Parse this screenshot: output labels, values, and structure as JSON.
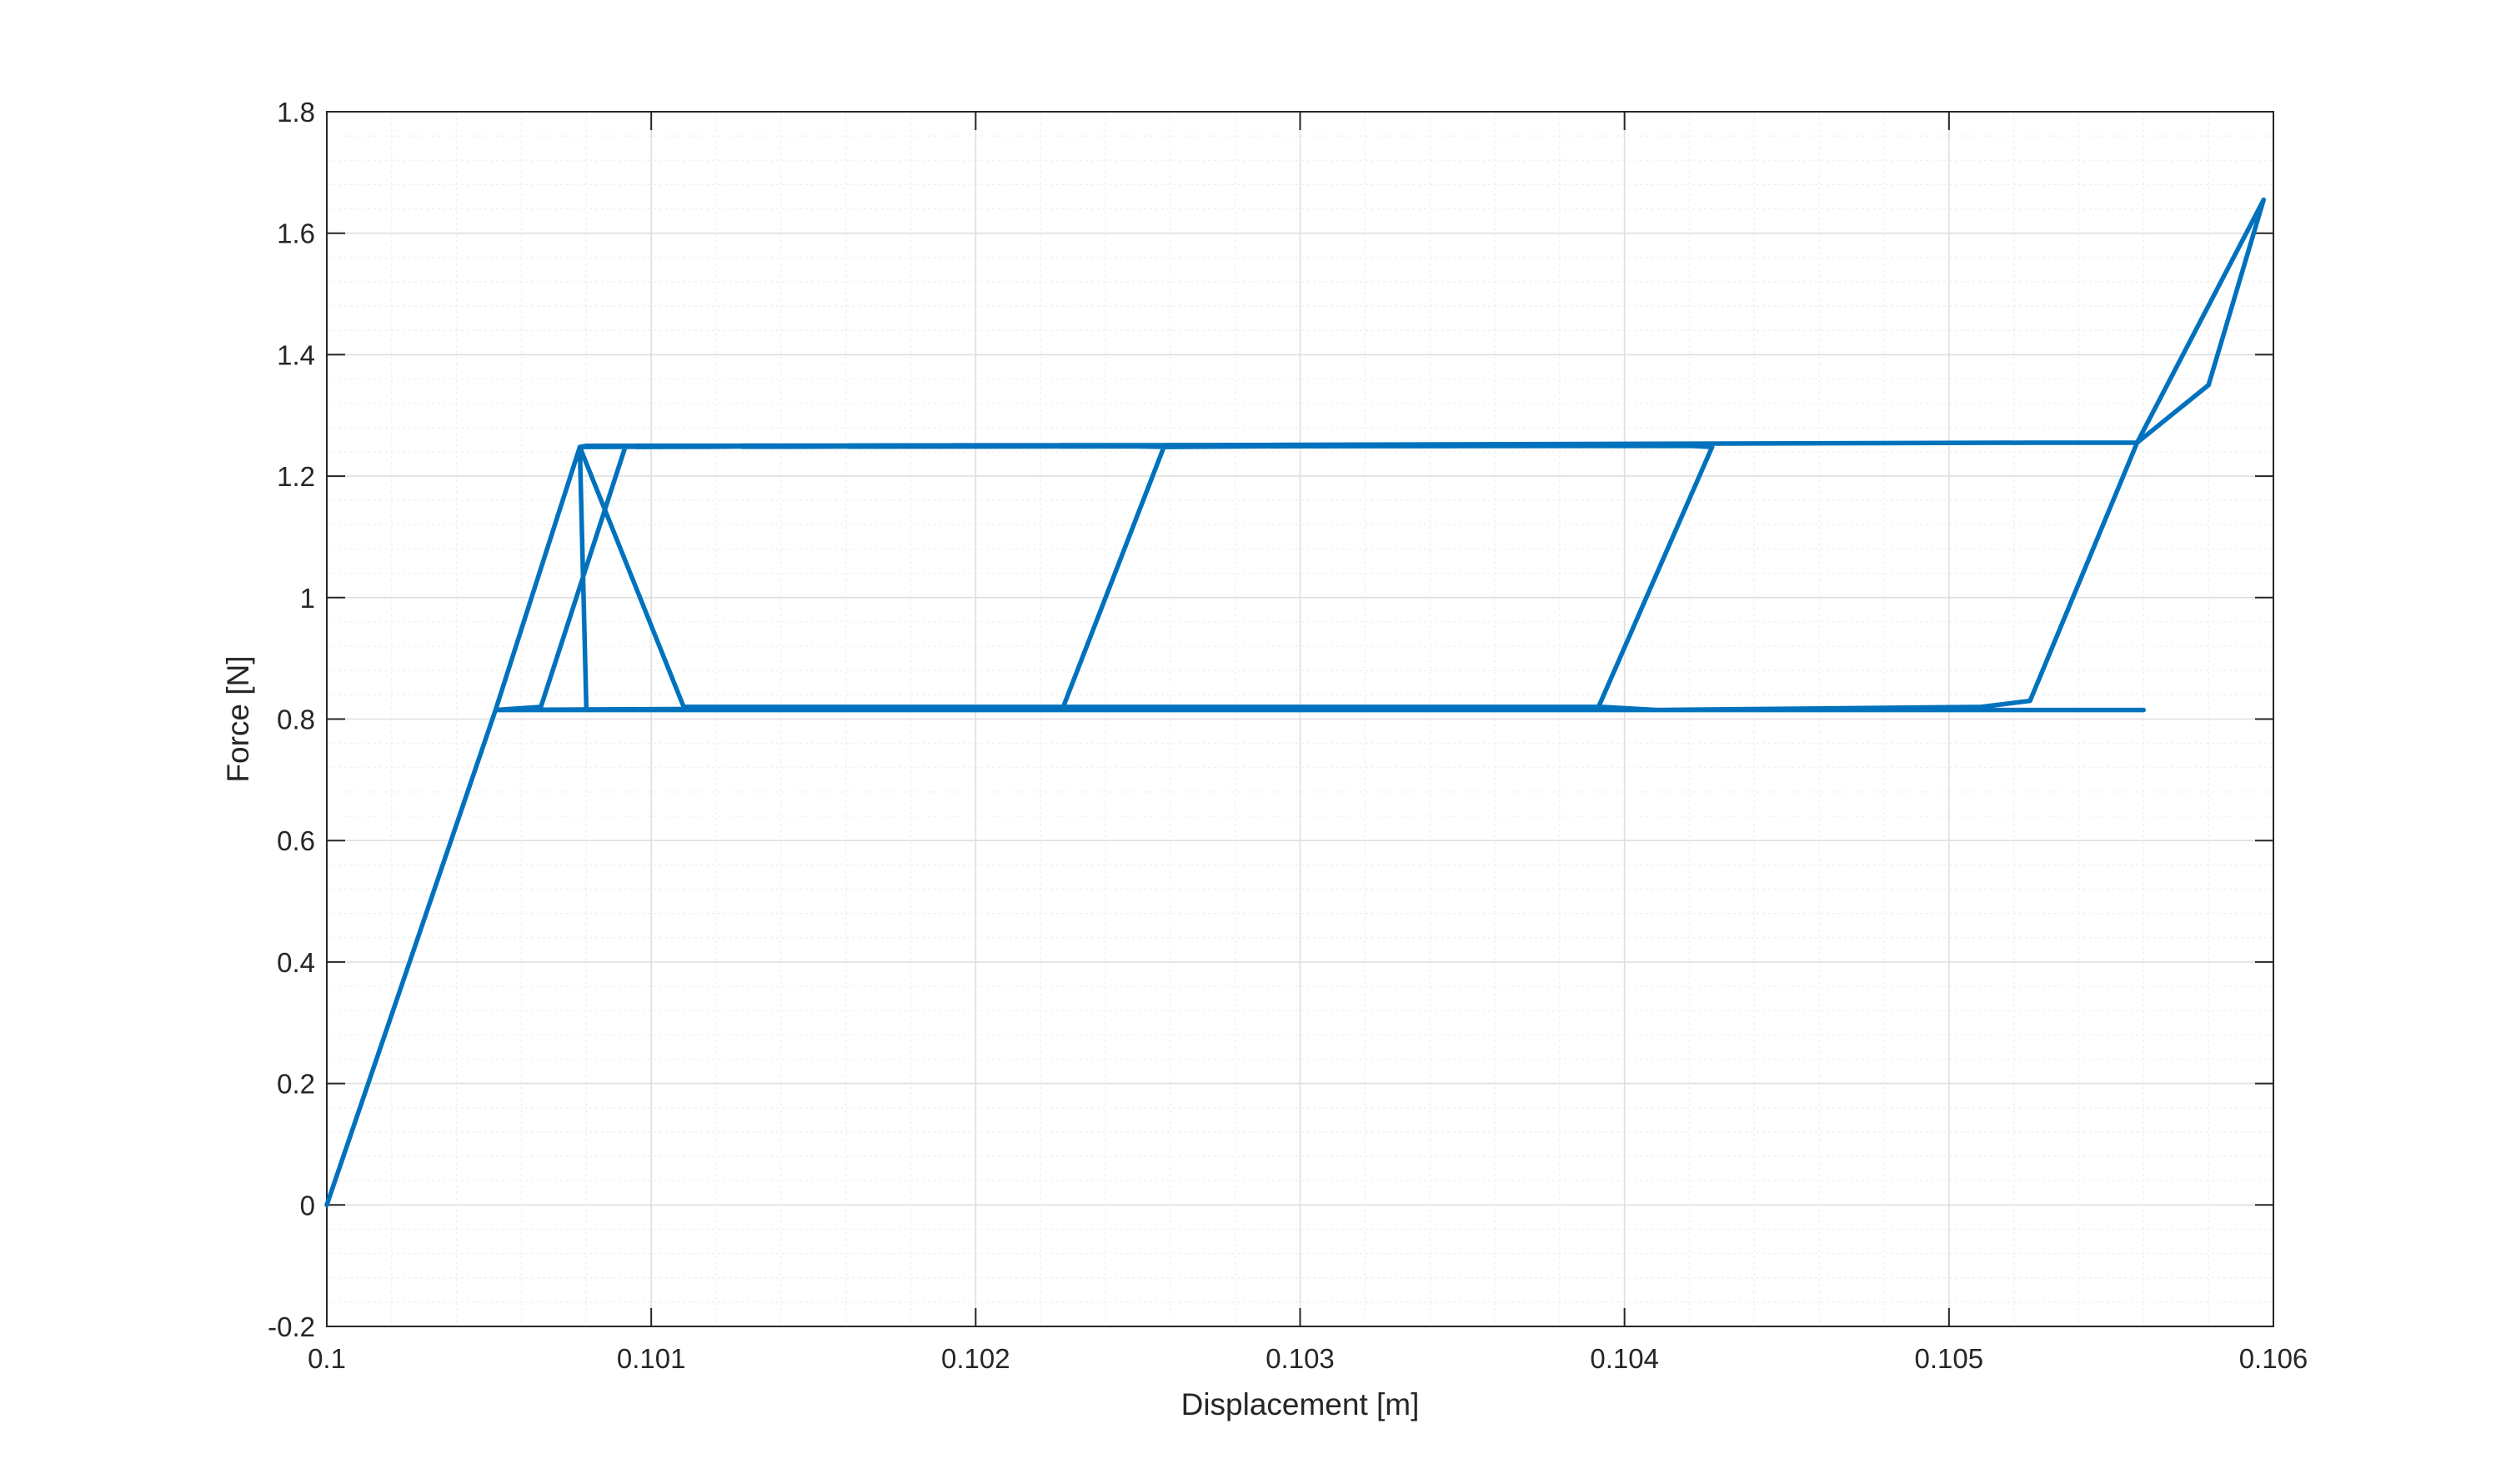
{
  "chart_data": {
    "type": "line",
    "title": "",
    "xlabel": "Displacement [m]",
    "ylabel": "Force [N]",
    "xlim": [
      0.1,
      0.106
    ],
    "ylim": [
      -0.2,
      1.8
    ],
    "xticks": [
      0.1,
      0.101,
      0.102,
      0.103,
      0.104,
      0.105,
      0.106
    ],
    "xtick_labels": [
      "0.1",
      "0.101",
      "0.102",
      "0.103",
      "0.104",
      "0.105",
      "0.106"
    ],
    "yticks": [
      -0.2,
      0,
      0.2,
      0.4,
      0.6,
      0.8,
      1,
      1.2,
      1.4,
      1.6,
      1.8
    ],
    "ytick_labels": [
      "-0.2",
      "0",
      "0.2",
      "0.4",
      "0.6",
      "0.8",
      "1",
      "1.2",
      "1.4",
      "1.6",
      "1.8"
    ],
    "grid": "on",
    "minor_grid": "on",
    "legend": "none",
    "color": "#0072BD",
    "series": [
      {
        "x": [
          0.1,
          0.10052,
          0.1056,
          0.10515,
          0.10052,
          0.10078,
          0.10525,
          0.10545,
          0.10558,
          0.1058,
          0.10597,
          0.10558,
          0.10525,
          0.1051,
          0.1041,
          0.10393,
          0.10052,
          0.10078,
          0.1042,
          0.10427,
          0.10392,
          0.1039,
          0.1011,
          0.10078,
          0.1008,
          0.104,
          0.10258,
          0.10227,
          0.10052,
          0.10078,
          0.1024,
          0.10258,
          0.10227,
          0.10225,
          0.1008,
          0.1008,
          0.10078,
          0.1024,
          0.10092,
          0.10066,
          0.10052,
          0.10078
        ],
        "y": [
          0,
          0.815,
          0.815,
          0.815,
          0.815,
          1.248,
          1.255,
          1.255,
          1.255,
          1.35,
          1.655,
          1.255,
          0.83,
          0.82,
          0.815,
          0.82,
          0.815,
          1.248,
          1.25,
          1.248,
          0.82,
          0.82,
          0.82,
          1.248,
          1.25,
          1.252,
          1.248,
          0.82,
          0.815,
          1.248,
          1.25,
          1.248,
          0.82,
          0.82,
          0.815,
          0.82,
          1.248,
          1.25,
          1.248,
          0.82,
          0.815,
          1.248
        ]
      }
    ]
  }
}
